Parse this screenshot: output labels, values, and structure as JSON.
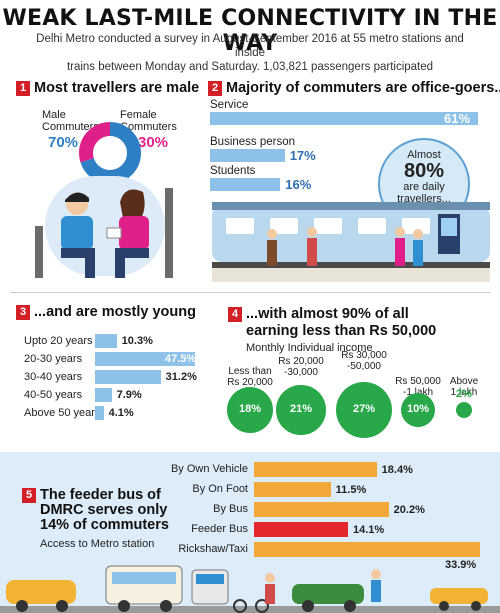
{
  "header": {
    "title": "WEAK LAST-MILE CONNECTIVITY IN THE WAY",
    "subtitle_line1": "Delhi Metro conducted a survey in August-September 2016 at 55 metro stations and inside",
    "subtitle_line2": "trains between Monday and Saturday. 1,03,821 passengers participated"
  },
  "chart_data": [
    {
      "type": "pie",
      "section_number": "1",
      "title": "Most travellers are male",
      "series": [
        {
          "name": "Male Commuters",
          "value": 70,
          "label": "70%",
          "color": "#2f7fc4"
        },
        {
          "name": "Female Commuters",
          "value": 30,
          "label": "30%",
          "color": "#e0208a"
        }
      ]
    },
    {
      "type": "bar",
      "section_number": "2",
      "title": "Majority of commuters are office-goers...",
      "categories": [
        "Service",
        "Business person",
        "Students"
      ],
      "values": [
        61,
        17,
        16
      ],
      "labels": [
        "61%",
        "17%",
        "16%"
      ],
      "xlim": [
        0,
        61
      ],
      "annotation": {
        "line1": "Almost",
        "big": "80%",
        "line2": "are daily",
        "line3": "travellers..."
      }
    },
    {
      "type": "bar",
      "section_number": "3",
      "title": "...and are mostly young",
      "categories": [
        "Upto 20 years",
        "20-30 years",
        "30-40 years",
        "40-50 years",
        "Above 50 years"
      ],
      "values": [
        10.3,
        47.5,
        31.2,
        7.9,
        4.1
      ],
      "labels": [
        "10.3%",
        "47.5%",
        "31.2%",
        "7.9%",
        "4.1%"
      ],
      "xlim": [
        0,
        47.5
      ]
    },
    {
      "type": "scatter",
      "section_number": "4",
      "title_line1": "...with almost 90% of all",
      "title_line2": "earning less than Rs 50,000",
      "subtitle": "Monthly Individual income",
      "categories": [
        {
          "line1": "Less than",
          "line2": "Rs 20,000"
        },
        {
          "line1": "Rs 20,000",
          "line2": "-30,000"
        },
        {
          "line1": "Rs 30,000",
          "line2": "-50,000"
        },
        {
          "line1": "Rs 50,000",
          "line2": "-1 lakh"
        },
        {
          "line1": "Above",
          "line2": "1 lakh"
        }
      ],
      "values": [
        18,
        21,
        27,
        10,
        2
      ],
      "labels": [
        "18%",
        "21%",
        "27%",
        "10%",
        "2%"
      ],
      "color": "#29a84a"
    },
    {
      "type": "bar",
      "section_number": "5",
      "title_line1": "The feeder bus of",
      "title_line2": "DMRC serves only",
      "title_line3": "14% of commuters",
      "subtitle": "Access to Metro station",
      "categories": [
        "By Own Vehicle",
        "By On Foot",
        "By Bus",
        "Feeder Bus",
        "Rickshaw/Taxi"
      ],
      "values": [
        18.4,
        11.5,
        20.2,
        14.1,
        33.9
      ],
      "labels": [
        "18.4%",
        "11.5%",
        "20.2%",
        "14.1%",
        "33.9%"
      ],
      "colors": [
        "#f2a838",
        "#f2a838",
        "#f2a838",
        "#e2282c",
        "#f2a838"
      ],
      "xlim": [
        0,
        33.9
      ]
    }
  ]
}
